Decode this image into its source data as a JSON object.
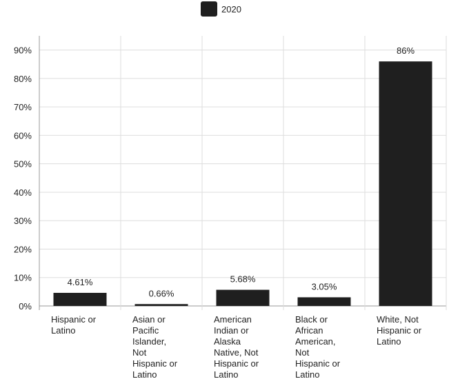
{
  "chart_data": {
    "type": "bar",
    "categories": [
      [
        "Hispanic or",
        "Latino"
      ],
      [
        "Asian or",
        "Pacific",
        "Islander,",
        "Not",
        "Hispanic or",
        "Latino"
      ],
      [
        "American",
        "Indian or",
        "Alaska",
        "Native, Not",
        "Hispanic or",
        "Latino"
      ],
      [
        "Black or",
        "African",
        "American,",
        "Not",
        "Hispanic or",
        "Latino"
      ],
      [
        "White, Not",
        "Hispanic or",
        "Latino"
      ]
    ],
    "series": [
      {
        "name": "2020",
        "values": [
          4.61,
          0.66,
          5.68,
          3.05,
          86
        ],
        "data_labels": [
          "4.61%",
          "0.66%",
          "5.68%",
          "3.05%",
          "86%"
        ]
      }
    ],
    "ylim": [
      0,
      95
    ],
    "yticks": [
      0,
      10,
      20,
      30,
      40,
      50,
      60,
      70,
      80,
      90
    ],
    "ytick_labels": [
      "0%",
      "10%",
      "20%",
      "30%",
      "40%",
      "50%",
      "60%",
      "70%",
      "80%",
      "90%"
    ],
    "grid": true,
    "legend_position": "top-center",
    "bar_color": "#1f1f1f",
    "grid_color": "#dddddd",
    "axis_color": "#999999"
  }
}
